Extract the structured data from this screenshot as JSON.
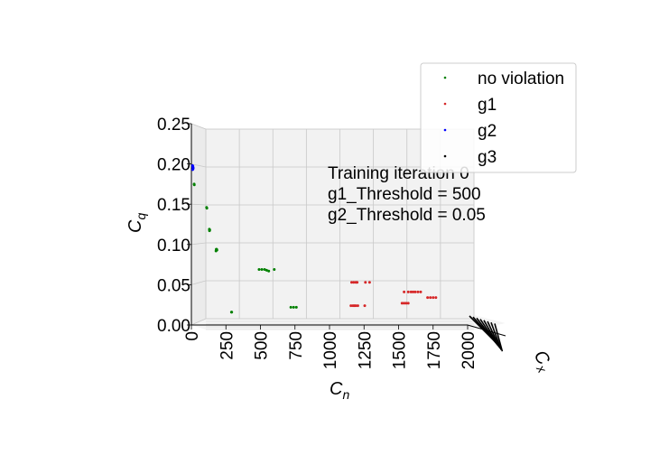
{
  "chart_data": {
    "type": "scatter",
    "projection": "3d",
    "xlabel": "C_n",
    "ylabel": "C_q",
    "zlabel": "C_x",
    "xlabel_main": "C",
    "xlabel_sub": "n",
    "ylabel_main": "C",
    "ylabel_sub": "q",
    "zlabel_main": "C",
    "zlabel_sub": "x",
    "xlim": [
      0,
      2000
    ],
    "ylim": [
      0,
      0.25
    ],
    "xticks": [
      "0",
      "250",
      "500",
      "750",
      "1000",
      "1250",
      "1500",
      "1750",
      "2000"
    ],
    "yticks": [
      "0.00",
      "0.05",
      "0.10",
      "0.15",
      "0.20",
      "0.25"
    ],
    "grid": true,
    "legend_position": "top-right",
    "annotation": [
      "Training iteration 0",
      "g1_Threshold = 500",
      "g2_Threshold = 0.05"
    ],
    "series": [
      {
        "name": "no violation",
        "color": "#008000",
        "points": [
          [
            20,
            0.175
          ],
          [
            21,
            0.174
          ],
          [
            110,
            0.146
          ],
          [
            112,
            0.145
          ],
          [
            130,
            0.119
          ],
          [
            133,
            0.118
          ],
          [
            131,
            0.117
          ],
          [
            180,
            0.094
          ],
          [
            185,
            0.093
          ],
          [
            178,
            0.092
          ],
          [
            183,
            0.094
          ],
          [
            290,
            0.016
          ],
          [
            292,
            0.016
          ],
          [
            490,
            0.069
          ],
          [
            510,
            0.069
          ],
          [
            530,
            0.069
          ],
          [
            545,
            0.068
          ],
          [
            560,
            0.067
          ],
          [
            600,
            0.069
          ],
          [
            720,
            0.022
          ],
          [
            740,
            0.022
          ],
          [
            760,
            0.022
          ]
        ]
      },
      {
        "name": "g1",
        "color": "#d62728",
        "points": [
          [
            1160,
            0.053
          ],
          [
            1175,
            0.053
          ],
          [
            1190,
            0.053
          ],
          [
            1200,
            0.053
          ],
          [
            1260,
            0.053
          ],
          [
            1290,
            0.053
          ],
          [
            1155,
            0.024
          ],
          [
            1170,
            0.024
          ],
          [
            1180,
            0.024
          ],
          [
            1190,
            0.024
          ],
          [
            1205,
            0.024
          ],
          [
            1255,
            0.024
          ],
          [
            1540,
            0.041
          ],
          [
            1570,
            0.041
          ],
          [
            1590,
            0.041
          ],
          [
            1605,
            0.041
          ],
          [
            1620,
            0.041
          ],
          [
            1640,
            0.041
          ],
          [
            1660,
            0.041
          ],
          [
            1525,
            0.027
          ],
          [
            1540,
            0.027
          ],
          [
            1555,
            0.027
          ],
          [
            1570,
            0.027
          ],
          [
            1710,
            0.034
          ],
          [
            1730,
            0.034
          ],
          [
            1750,
            0.034
          ],
          [
            1770,
            0.034
          ]
        ]
      },
      {
        "name": "g2",
        "color": "#0000ff",
        "points": [
          [
            8,
            0.198
          ],
          [
            10,
            0.196
          ],
          [
            12,
            0.194
          ],
          [
            9,
            0.193
          ],
          [
            11,
            0.197
          ],
          [
            13,
            0.195
          ]
        ]
      },
      {
        "name": "g3",
        "color": "#000000",
        "points": []
      }
    ]
  }
}
